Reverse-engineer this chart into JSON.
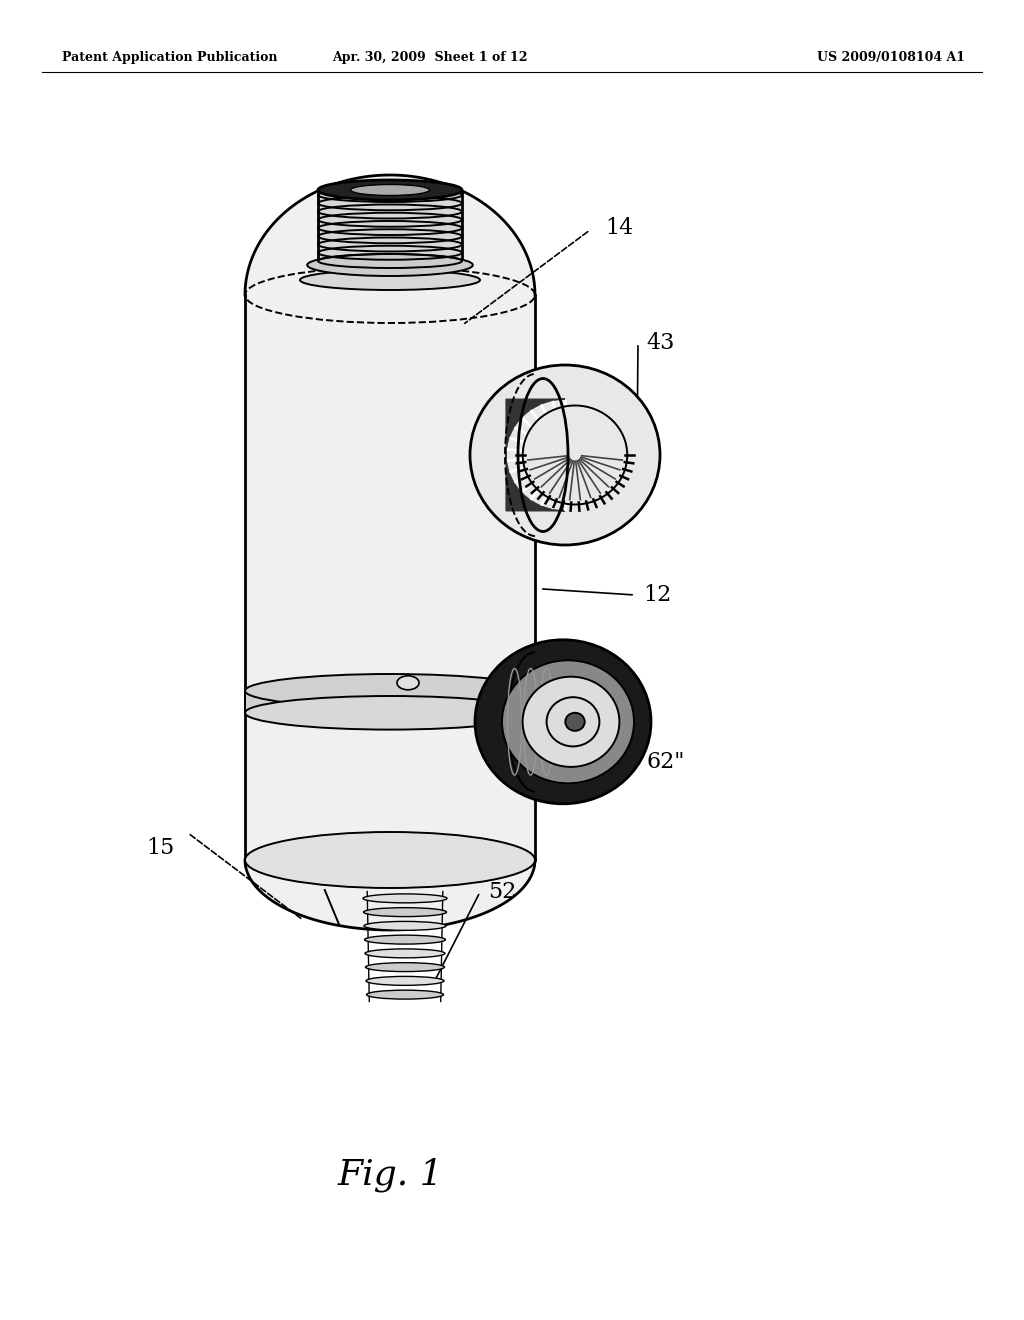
{
  "bg": "#ffffff",
  "lc": "#000000",
  "header_left": "Patent Application Publication",
  "header_center": "Apr. 30, 2009  Sheet 1 of 12",
  "header_right": "US 2009/0108104 A1",
  "fig_label": "Fig. 1",
  "lbl_14": "14",
  "lbl_43": "43",
  "lbl_12": "12",
  "lbl_62": "62\"",
  "lbl_15": "15",
  "lbl_52": "52"
}
